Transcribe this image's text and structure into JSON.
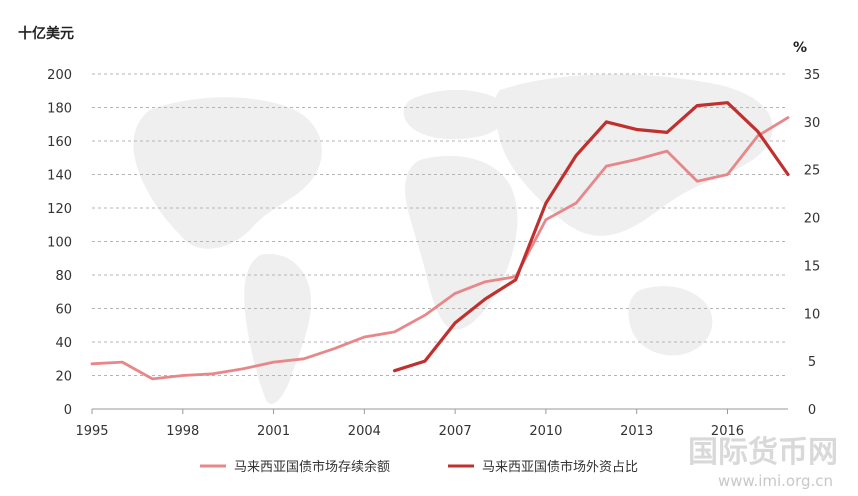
{
  "chart_data": {
    "type": "line",
    "left_unit": "十亿美元",
    "right_unit": "%",
    "x_ticks": [
      "1995",
      "1998",
      "2001",
      "2004",
      "2007",
      "2010",
      "2013",
      "2016"
    ],
    "xlim": [
      1995,
      2018
    ],
    "ylim_left": [
      0,
      200
    ],
    "ylim_right": [
      0,
      35
    ],
    "left_ticks": [
      0,
      20,
      40,
      60,
      80,
      100,
      120,
      140,
      160,
      180,
      200
    ],
    "right_ticks": [
      0,
      5,
      10,
      15,
      20,
      25,
      30,
      35
    ],
    "grid": true,
    "legend_position": "bottom",
    "series": [
      {
        "name": "马来西亚国债市场存续余额",
        "axis": "left",
        "color": "#e8878a",
        "x": [
          1995,
          1996,
          1997,
          1998,
          1999,
          2000,
          2001,
          2002,
          2003,
          2004,
          2005,
          2006,
          2007,
          2008,
          2009,
          2010,
          2011,
          2012,
          2013,
          2014,
          2015,
          2016,
          2017,
          2018
        ],
        "y": [
          27,
          28,
          18,
          20,
          21,
          24,
          28,
          30,
          36,
          43,
          46,
          56,
          69,
          76,
          79,
          113,
          123,
          145,
          149,
          154,
          136,
          140,
          163,
          174
        ]
      },
      {
        "name": "马来西亚国债市场外资占比",
        "axis": "right",
        "color": "#c0302e",
        "x": [
          2005,
          2006,
          2007,
          2008,
          2009,
          2010,
          2011,
          2012,
          2013,
          2014,
          2015,
          2016,
          2017,
          2018
        ],
        "y": [
          4.0,
          5.0,
          9.0,
          11.5,
          13.5,
          21.5,
          26.5,
          30.0,
          29.2,
          28.9,
          31.7,
          32.0,
          29.0,
          24.5
        ]
      }
    ]
  },
  "watermark": {
    "main": "国际货币网",
    "url": "www.imi.org.cn"
  }
}
